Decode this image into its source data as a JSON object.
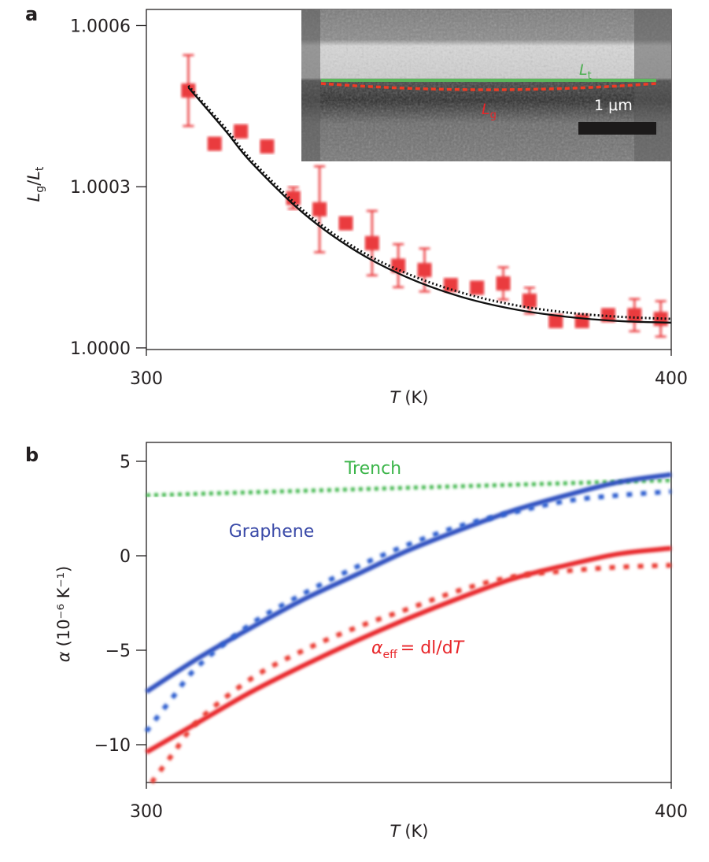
{
  "chart_data": [
    {
      "panel_label": "a",
      "type": "scatter",
      "xlabel_var": "T",
      "xlabel_unit": "(K)",
      "ylabel_num": "L",
      "ylabel_num_sub": "g",
      "ylabel_den": "L",
      "ylabel_den_sub": "t",
      "xlim": [
        300,
        400
      ],
      "ylim": [
        0.99999696,
        1.00063
      ],
      "xticks": [
        300,
        400
      ],
      "xtick_labels": [
        "300",
        "400"
      ],
      "yticks": [
        1.0,
        1.0003,
        1.0006
      ],
      "ytick_labels": [
        "1.0000",
        "1.0003",
        "1.0006"
      ],
      "grid": false,
      "colors": {
        "data": "#e8262a",
        "fit": "#111111"
      },
      "data_points": {
        "x": [
          308,
          313,
          318,
          323,
          328,
          333,
          338,
          343,
          348,
          353,
          358,
          363,
          368,
          373,
          378,
          383,
          388,
          393,
          398
        ],
        "y": [
          1.000479,
          1.00038,
          1.000403,
          1.000375,
          1.000279,
          1.000258,
          1.000232,
          1.000195,
          1.000153,
          1.000145,
          1.000117,
          1.000112,
          1.00012,
          1.000088,
          1.00005,
          1.00005,
          1.000061,
          1.000061,
          1.000054
        ],
        "yerr": [
          6.6e-05,
          0,
          0,
          0,
          2e-05,
          8e-05,
          0,
          6e-05,
          4e-05,
          4e-05,
          0,
          0,
          3e-05,
          2.4e-05,
          0,
          0,
          0,
          3e-05,
          3.3e-05
        ]
      },
      "fit_solid": {
        "x": [
          308,
          315,
          320,
          330,
          340,
          350,
          360,
          370,
          380,
          390,
          400
        ],
        "y": [
          1.000485,
          1.000405,
          1.000345,
          1.00025,
          1.00018,
          1.00013,
          1.000095,
          1.000072,
          1.000058,
          1.00005,
          1.000047
        ]
      },
      "fit_dotted": {
        "x": [
          308,
          315,
          320,
          330,
          340,
          350,
          360,
          370,
          380,
          390,
          400
        ],
        "y": [
          1.000488,
          1.00041,
          1.00035,
          1.000255,
          1.000185,
          1.000137,
          1.000103,
          1.00008,
          1.000066,
          1.000058,
          1.000054
        ]
      },
      "inset": {
        "type": "SEM image",
        "label_top": "L",
        "label_top_sub": "t",
        "label_bottom": "L",
        "label_bottom_sub": "g",
        "scale_bar": "1 μm",
        "colors": {
          "trench_line": "#5cb85c",
          "graphene_line": "#ef3b24"
        }
      }
    },
    {
      "panel_label": "b",
      "type": "line",
      "xlabel_var": "T",
      "xlabel_unit": "(K)",
      "ylabel_symbol": "α",
      "ylabel_unit": "(10⁻⁶ K⁻¹)",
      "xlim": [
        300,
        400
      ],
      "ylim": [
        -12,
        6
      ],
      "xticks": [
        300,
        400
      ],
      "xtick_labels": [
        "300",
        "400"
      ],
      "yticks": [
        5,
        0,
        -5,
        -10
      ],
      "ytick_labels": [
        "5",
        "0",
        "−5",
        "−10"
      ],
      "grid": false,
      "annotations": {
        "trench": "Trench",
        "graphene": "Graphene",
        "alpha_eff": "α",
        "alpha_eff_sub": "eff",
        "alpha_eff_rhs": "= dl/d",
        "alpha_eff_T": "T"
      },
      "series": [
        {
          "name": "Trench",
          "style": "dotted",
          "color": "#3cb54a",
          "x": [
            300,
            400
          ],
          "y": [
            3.2,
            4.0
          ]
        },
        {
          "name": "Graphene",
          "style": "solid",
          "color": "#2e4fbf",
          "x": [
            300,
            310,
            320,
            330,
            340,
            350,
            360,
            370,
            380,
            390,
            400
          ],
          "y": [
            -7.2,
            -5.4,
            -3.8,
            -2.3,
            -1.0,
            0.3,
            1.4,
            2.4,
            3.2,
            3.9,
            4.3
          ]
        },
        {
          "name": "Graphene",
          "style": "dashed",
          "color": "#2e5fcf",
          "x": [
            300,
            305,
            310,
            320,
            330,
            340,
            350,
            360,
            370,
            380,
            390,
            400
          ],
          "y": [
            -9.3,
            -7.5,
            -5.8,
            -3.6,
            -2.0,
            -0.6,
            0.6,
            1.6,
            2.3,
            2.9,
            3.2,
            3.4
          ]
        },
        {
          "name": "α_eff",
          "style": "solid",
          "color": "#e8262a",
          "x": [
            300,
            310,
            320,
            330,
            340,
            350,
            360,
            370,
            380,
            390,
            400
          ],
          "y": [
            -10.4,
            -8.8,
            -7.2,
            -5.8,
            -4.5,
            -3.3,
            -2.2,
            -1.2,
            -0.5,
            0.1,
            0.4
          ]
        },
        {
          "name": "α_eff",
          "style": "dashed",
          "color": "#ea3a33",
          "x": [
            301,
            305,
            310,
            320,
            330,
            340,
            350,
            360,
            370,
            380,
            390,
            400
          ],
          "y": [
            -12,
            -10.5,
            -8.7,
            -6.5,
            -5.0,
            -3.8,
            -2.8,
            -1.8,
            -1.1,
            -0.8,
            -0.6,
            -0.5
          ]
        }
      ]
    }
  ]
}
